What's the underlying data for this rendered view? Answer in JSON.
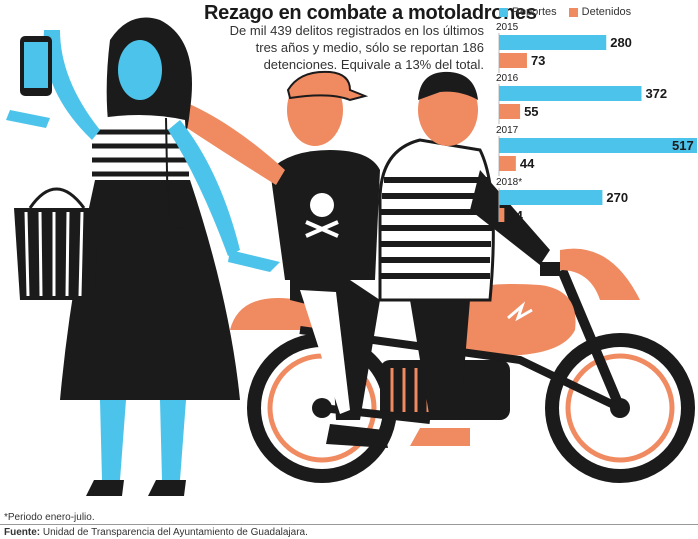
{
  "title": "Rezago en combate a motoladrones",
  "subtitle": "De mil 439 delitos registrados en los últimos tres años y medio, sólo se reportan 186 detenciones. Equivale a 13% del total.",
  "footnote": "*Periodo enero-julio.",
  "source_label": "Fuente:",
  "source_text": "Unidad de Transparencia del Ayuntamiento de Guadalajara.",
  "colors": {
    "reportes": "#4cc3ea",
    "detenidos": "#f08a60",
    "ink": "#1b1b1b",
    "skin": "#4cc3ea"
  },
  "chart_data": {
    "type": "bar",
    "orientation": "horizontal",
    "categories": [
      "2015",
      "2016",
      "2017",
      "2018*"
    ],
    "series": [
      {
        "name": "Reportes",
        "values": [
          280,
          372,
          517,
          270
        ]
      },
      {
        "name": "Detenidos",
        "values": [
          73,
          55,
          44,
          14
        ]
      }
    ],
    "xlim": [
      0,
      517
    ],
    "legend": "top"
  }
}
